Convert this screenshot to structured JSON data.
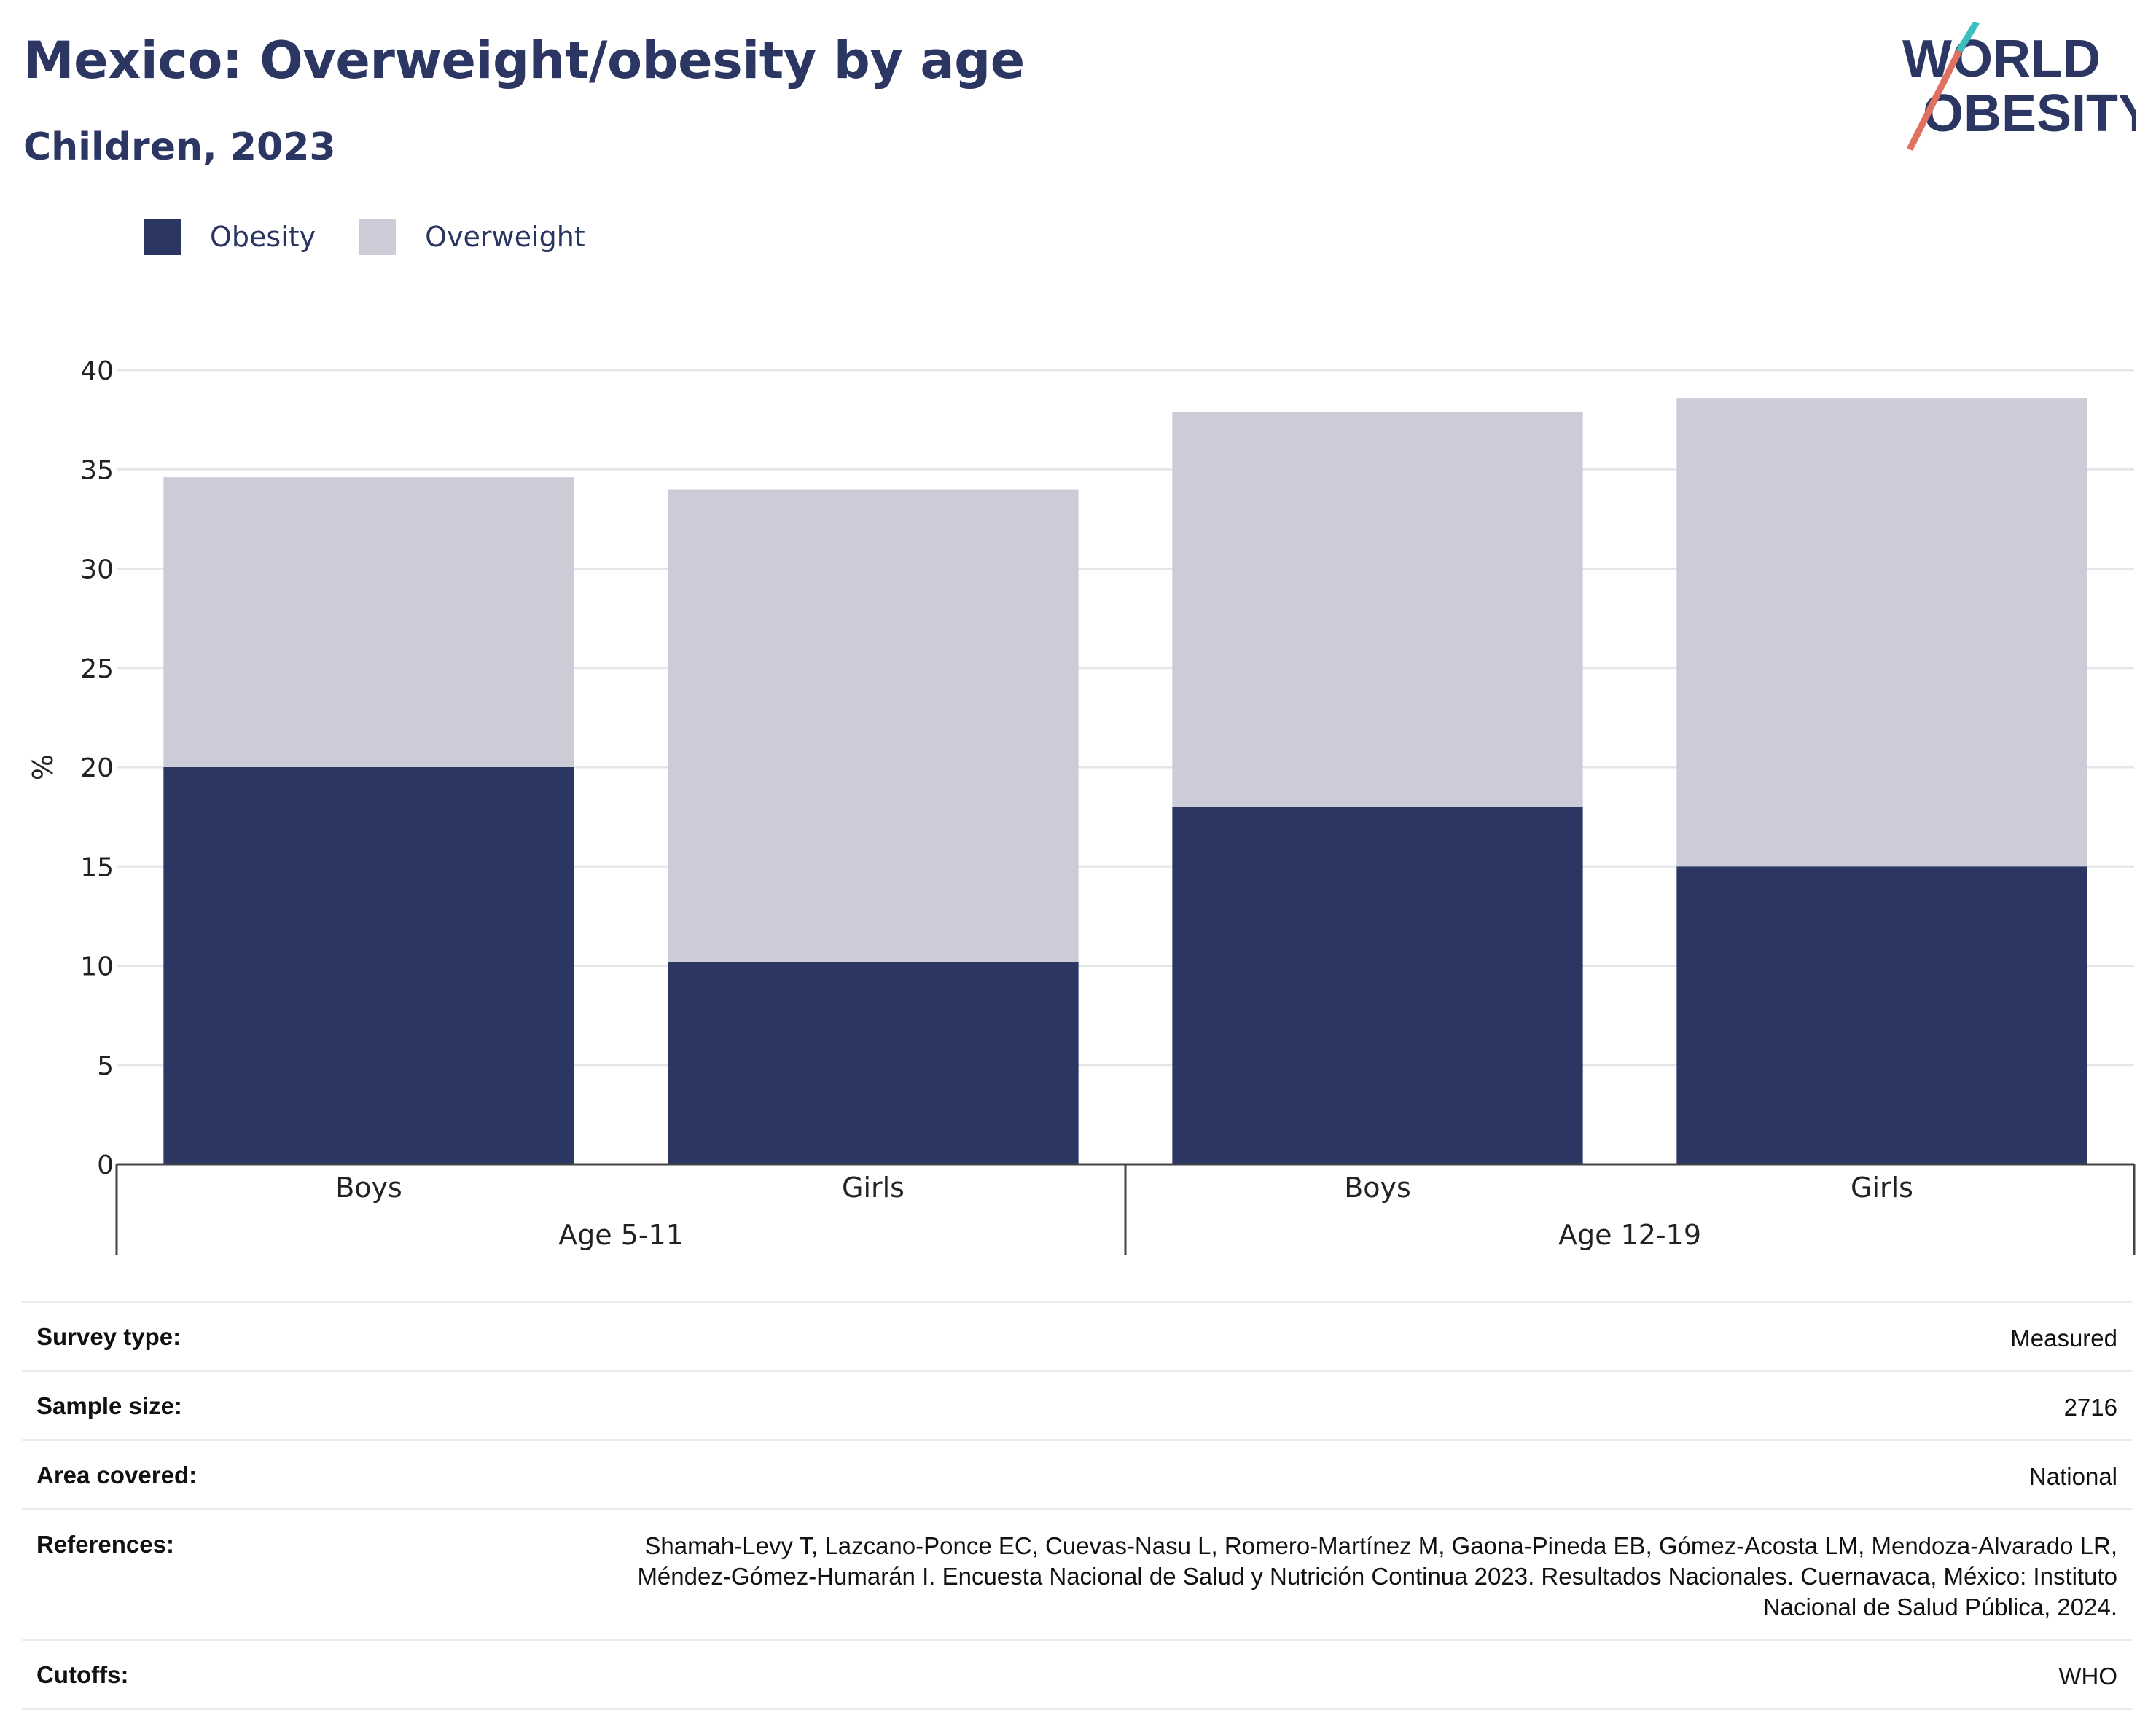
{
  "header": {
    "title": "Mexico: Overweight/obesity by age",
    "subtitle": "Children, 2023"
  },
  "logo": {
    "line1": "WORLD",
    "line2": "OBESITY",
    "accent_teal": "#3ebfbf",
    "accent_red": "#e0705f"
  },
  "legend": [
    {
      "label": "Obesity",
      "color": "#2b3662"
    },
    {
      "label": "Overweight",
      "color": "#cbccd7"
    }
  ],
  "chart_data": {
    "type": "bar",
    "stacked": true,
    "categories": [
      "Boys",
      "Girls",
      "Boys",
      "Girls"
    ],
    "groups": [
      {
        "label": "Age 5-11",
        "categories": [
          0,
          1
        ]
      },
      {
        "label": "Age 12-19",
        "categories": [
          2,
          3
        ]
      }
    ],
    "series": [
      {
        "name": "Obesity",
        "color": "#2b3662",
        "values": [
          20.0,
          10.2,
          18.0,
          15.0
        ]
      },
      {
        "name": "Overweight",
        "color": "#cbccd7",
        "values": [
          14.6,
          23.8,
          19.9,
          23.6
        ]
      }
    ],
    "ylabel": "%",
    "ylim": [
      0,
      40
    ],
    "yticks": [
      0,
      5,
      10,
      15,
      20,
      25,
      30,
      35,
      40
    ],
    "grid": true,
    "legend_position": "top-left"
  },
  "info": [
    {
      "label": "Survey type:",
      "value": "Measured"
    },
    {
      "label": "Sample size:",
      "value": "2716"
    },
    {
      "label": "Area covered:",
      "value": "National"
    },
    {
      "label": "References:",
      "value": "Shamah-Levy T, Lazcano-Ponce EC, Cuevas-Nasu L, Romero-Martínez M, Gaona-Pineda EB, Gómez-Acosta LM, Mendoza-Alvarado LR, Méndez-Gómez-Humarán I. Encuesta Nacional de Salud y Nutrición Continua 2023. Resultados Nacionales. Cuernavaca, México: Instituto Nacional de Salud Pública, 2024."
    },
    {
      "label": "Cutoffs:",
      "value": "WHO"
    }
  ]
}
